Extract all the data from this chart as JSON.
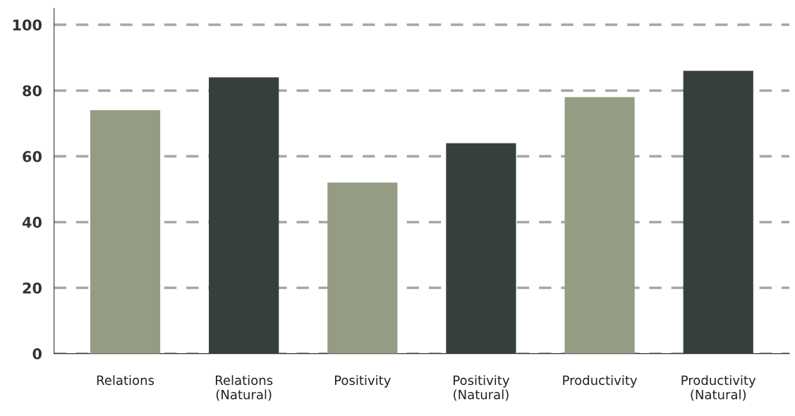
{
  "chart_data": {
    "type": "bar",
    "categories": [
      "Relations",
      "Relations\n(Natural)",
      "Positivity",
      "Positivity\n(Natural)",
      "Productivity",
      "Productivity\n(Natural)"
    ],
    "values": [
      74,
      84,
      52,
      64,
      78,
      86
    ],
    "colors": [
      "#949d83",
      "#35403a",
      "#949d83",
      "#35403a",
      "#949d83",
      "#35403a"
    ],
    "ylim": [
      0,
      105
    ],
    "yticks": [
      0,
      20,
      40,
      60,
      80,
      100
    ],
    "grid": "y",
    "line_style": "dashed"
  }
}
